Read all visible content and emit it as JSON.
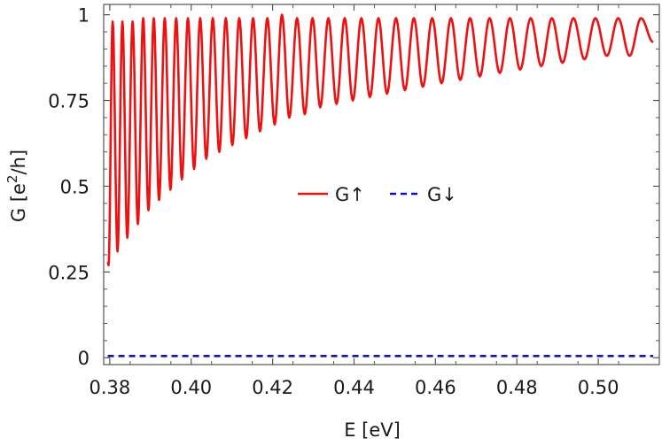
{
  "chart_data": {
    "type": "line",
    "xlabel": "E [eV]",
    "ylabel": "G [e²/h]",
    "ylabel_parts": {
      "base": "e",
      "sup": "2",
      "rest": "/h"
    },
    "xlim": [
      0.3785,
      0.515
    ],
    "ylim": [
      -0.02,
      1.03
    ],
    "x_ticks": [
      0.38,
      0.4,
      0.42,
      0.44,
      0.46,
      0.48,
      0.5
    ],
    "x_tick_labels": [
      "0.38",
      "0.40",
      "0.42",
      "0.44",
      "0.46",
      "0.48",
      "0.50"
    ],
    "y_ticks": [
      0,
      0.25,
      0.5,
      0.75,
      1
    ],
    "y_tick_labels": [
      "0",
      "0.25",
      "0.5",
      "0.75",
      "1"
    ],
    "grid": false,
    "legend_position": "center",
    "series": [
      {
        "name": "G↑",
        "color": "#ee1111",
        "style": "solid",
        "description_of_shape": "oscillating conductance: peaks near 1, minima rising with energy",
        "x_start": 0.3795,
        "x_end": 0.5135,
        "peaks_x": [
          0.3807,
          0.3831,
          0.3856,
          0.3882,
          0.3908,
          0.3935,
          0.3963,
          0.3992,
          0.4022,
          0.4053,
          0.4085,
          0.4118,
          0.4152,
          0.4187,
          0.4223,
          0.426,
          0.4298,
          0.4337,
          0.4377,
          0.4418,
          0.446,
          0.4503,
          0.4547,
          0.4592,
          0.4638,
          0.4685,
          0.4733,
          0.4783,
          0.4834,
          0.4886,
          0.4939,
          0.4993,
          0.5049,
          0.5105
        ],
        "peak_values": [
          0.98,
          0.98,
          0.98,
          0.99,
          0.99,
          0.99,
          0.99,
          0.99,
          0.99,
          0.99,
          0.99,
          0.99,
          0.99,
          0.99,
          1.0,
          0.99,
          0.99,
          0.99,
          0.99,
          0.99,
          0.99,
          0.99,
          0.99,
          0.99,
          0.99,
          0.99,
          0.99,
          0.99,
          0.99,
          0.99,
          0.99,
          0.99,
          0.99,
          0.99
        ],
        "minima_x": [
          0.3797,
          0.3819,
          0.3843,
          0.3869,
          0.3895,
          0.3921,
          0.3949,
          0.3977,
          0.4007,
          0.4037,
          0.4069,
          0.4101,
          0.4135,
          0.4169,
          0.4205,
          0.4241,
          0.4279,
          0.4317,
          0.4357,
          0.4397,
          0.4439,
          0.4481,
          0.4525,
          0.4569,
          0.4615,
          0.4661,
          0.4709,
          0.4758,
          0.4808,
          0.486,
          0.4912,
          0.4966,
          0.5021,
          0.5077,
          0.5135
        ],
        "minima_values": [
          0.27,
          0.31,
          0.35,
          0.39,
          0.43,
          0.46,
          0.49,
          0.52,
          0.55,
          0.58,
          0.6,
          0.62,
          0.64,
          0.66,
          0.68,
          0.7,
          0.71,
          0.73,
          0.74,
          0.75,
          0.76,
          0.77,
          0.78,
          0.79,
          0.8,
          0.81,
          0.82,
          0.83,
          0.84,
          0.85,
          0.86,
          0.87,
          0.88,
          0.88,
          0.92
        ]
      },
      {
        "name": "G↓",
        "color": "#1111cc",
        "style": "dashed",
        "x": [
          0.3795,
          0.5135
        ],
        "y": [
          0.005,
          0.005
        ]
      }
    ]
  }
}
